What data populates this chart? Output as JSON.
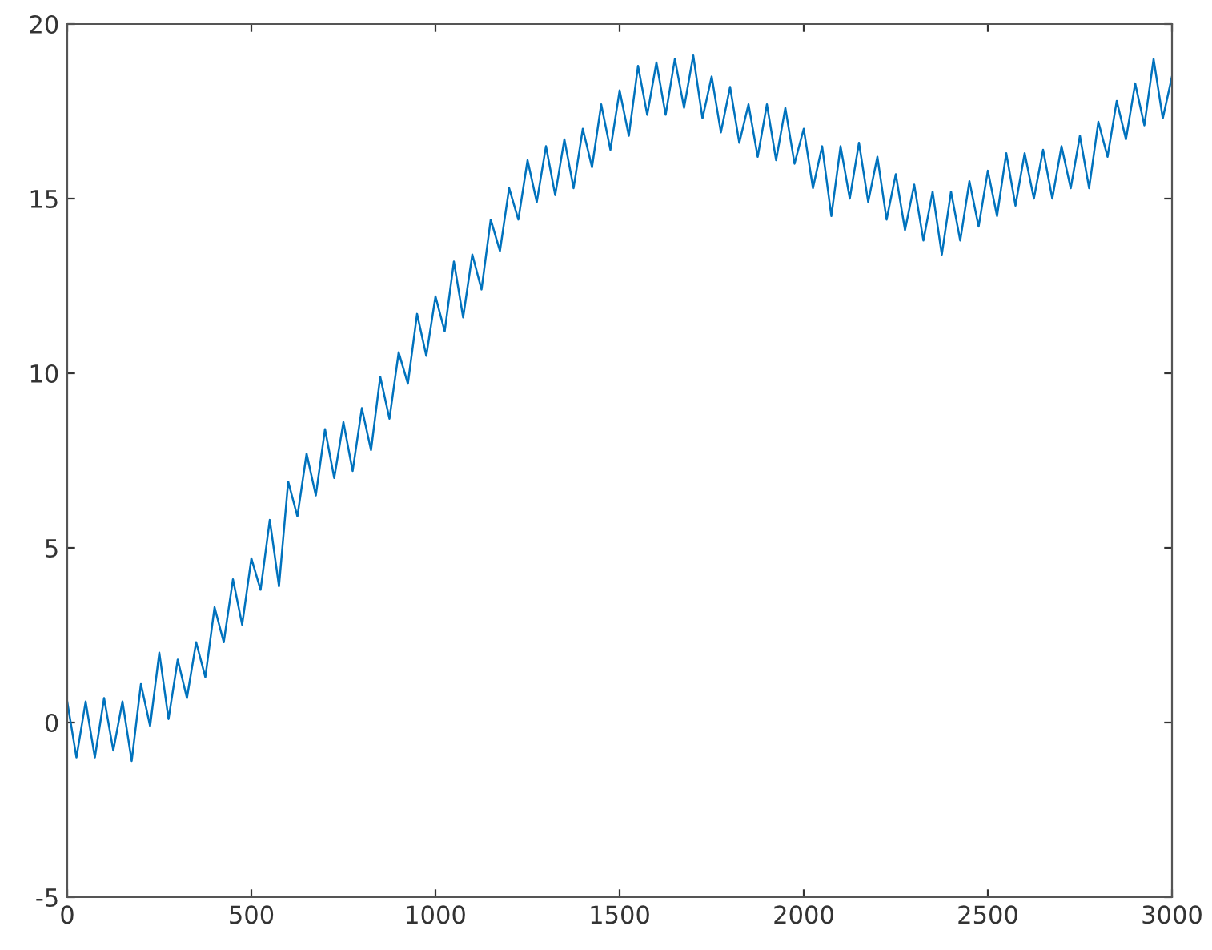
{
  "chart_data": {
    "type": "line",
    "xlim": [
      0,
      3000
    ],
    "ylim": [
      -5,
      20
    ],
    "xticks": [
      0,
      500,
      1000,
      1500,
      2000,
      2500,
      3000
    ],
    "yticks": [
      -5,
      0,
      5,
      10,
      15,
      20
    ],
    "grid": false,
    "legend": false,
    "series": [
      {
        "color": "#0072bd",
        "x": [
          0,
          25,
          50,
          75,
          100,
          125,
          150,
          175,
          200,
          225,
          250,
          275,
          300,
          325,
          350,
          375,
          400,
          425,
          450,
          475,
          500,
          525,
          550,
          575,
          600,
          625,
          650,
          675,
          700,
          725,
          750,
          775,
          800,
          825,
          850,
          875,
          900,
          925,
          950,
          975,
          1000,
          1025,
          1050,
          1075,
          1100,
          1125,
          1150,
          1175,
          1200,
          1225,
          1250,
          1275,
          1300,
          1325,
          1350,
          1375,
          1400,
          1425,
          1450,
          1475,
          1500,
          1525,
          1550,
          1575,
          1600,
          1625,
          1650,
          1675,
          1700,
          1725,
          1750,
          1775,
          1800,
          1825,
          1850,
          1875,
          1900,
          1925,
          1950,
          1975,
          2000,
          2025,
          2050,
          2075,
          2100,
          2125,
          2150,
          2175,
          2200,
          2225,
          2250,
          2275,
          2300,
          2325,
          2350,
          2375,
          2400,
          2425,
          2450,
          2475,
          2500,
          2525,
          2550,
          2575,
          2600,
          2625,
          2650,
          2675,
          2700,
          2725,
          2750,
          2775,
          2800,
          2825,
          2850,
          2875,
          2900,
          2925,
          2950,
          2975,
          3000
        ],
        "values": [
          0.6,
          -1.0,
          0.6,
          -1.0,
          0.7,
          -0.8,
          0.6,
          -1.1,
          1.1,
          -0.1,
          2.0,
          0.1,
          1.8,
          0.7,
          2.3,
          1.3,
          3.3,
          2.3,
          4.1,
          2.8,
          4.7,
          3.8,
          5.8,
          3.9,
          6.9,
          5.9,
          7.7,
          6.5,
          8.4,
          7.0,
          8.6,
          7.2,
          9.0,
          7.8,
          9.9,
          8.7,
          10.6,
          9.7,
          11.7,
          10.5,
          12.2,
          11.2,
          13.2,
          11.6,
          13.4,
          12.4,
          14.4,
          13.5,
          15.3,
          14.4,
          16.1,
          14.9,
          16.5,
          15.1,
          16.7,
          15.3,
          17.0,
          15.9,
          17.7,
          16.4,
          18.1,
          16.8,
          18.8,
          17.4,
          18.9,
          17.4,
          19.0,
          17.6,
          19.1,
          17.3,
          18.5,
          16.9,
          18.2,
          16.6,
          17.7,
          16.2,
          17.7,
          16.1,
          17.6,
          16.0,
          17.0,
          15.3,
          16.5,
          14.5,
          16.5,
          15.0,
          16.6,
          14.9,
          16.2,
          14.4,
          15.7,
          14.1,
          15.4,
          13.8,
          15.2,
          13.4,
          15.2,
          13.8,
          15.5,
          14.2,
          15.8,
          14.5,
          16.3,
          14.8,
          16.3,
          15.0,
          16.4,
          15.0,
          16.5,
          15.3,
          16.8,
          15.3,
          17.2,
          16.2,
          17.8,
          16.7,
          18.3,
          17.1,
          19.0,
          17.3,
          18.5
        ]
      }
    ]
  }
}
